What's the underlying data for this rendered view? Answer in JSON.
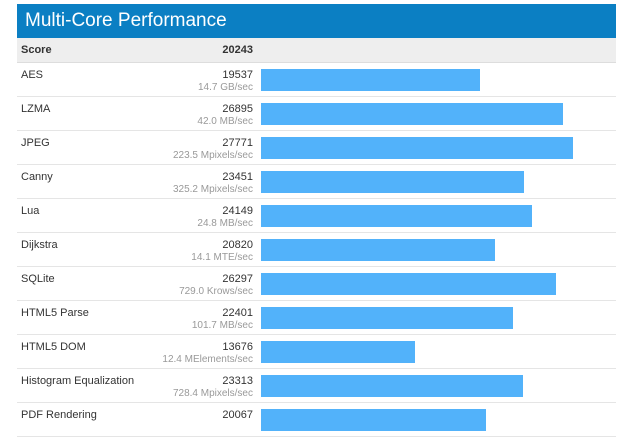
{
  "title": "Multi-Core Performance",
  "score": {
    "label": "Score",
    "value": "20243"
  },
  "bar_color": "#52b2fa",
  "rows": [
    {
      "name": "AES",
      "score": 19537,
      "unit": "14.7 GB/sec"
    },
    {
      "name": "LZMA",
      "score": 26895,
      "unit": "42.0 MB/sec"
    },
    {
      "name": "JPEG",
      "score": 27771,
      "unit": "223.5 Mpixels/sec"
    },
    {
      "name": "Canny",
      "score": 23451,
      "unit": "325.2 Mpixels/sec"
    },
    {
      "name": "Lua",
      "score": 24149,
      "unit": "24.8 MB/sec"
    },
    {
      "name": "Dijkstra",
      "score": 20820,
      "unit": "14.1 MTE/sec"
    },
    {
      "name": "SQLite",
      "score": 26297,
      "unit": "729.0 Krows/sec"
    },
    {
      "name": "HTML5 Parse",
      "score": 22401,
      "unit": "101.7 MB/sec"
    },
    {
      "name": "HTML5 DOM",
      "score": 13676,
      "unit": "12.4 MElements/sec"
    },
    {
      "name": "Histogram Equalization",
      "score": 23313,
      "unit": "728.4 Mpixels/sec"
    },
    {
      "name": "PDF Rendering",
      "score": 20067,
      "unit": ""
    }
  ]
}
